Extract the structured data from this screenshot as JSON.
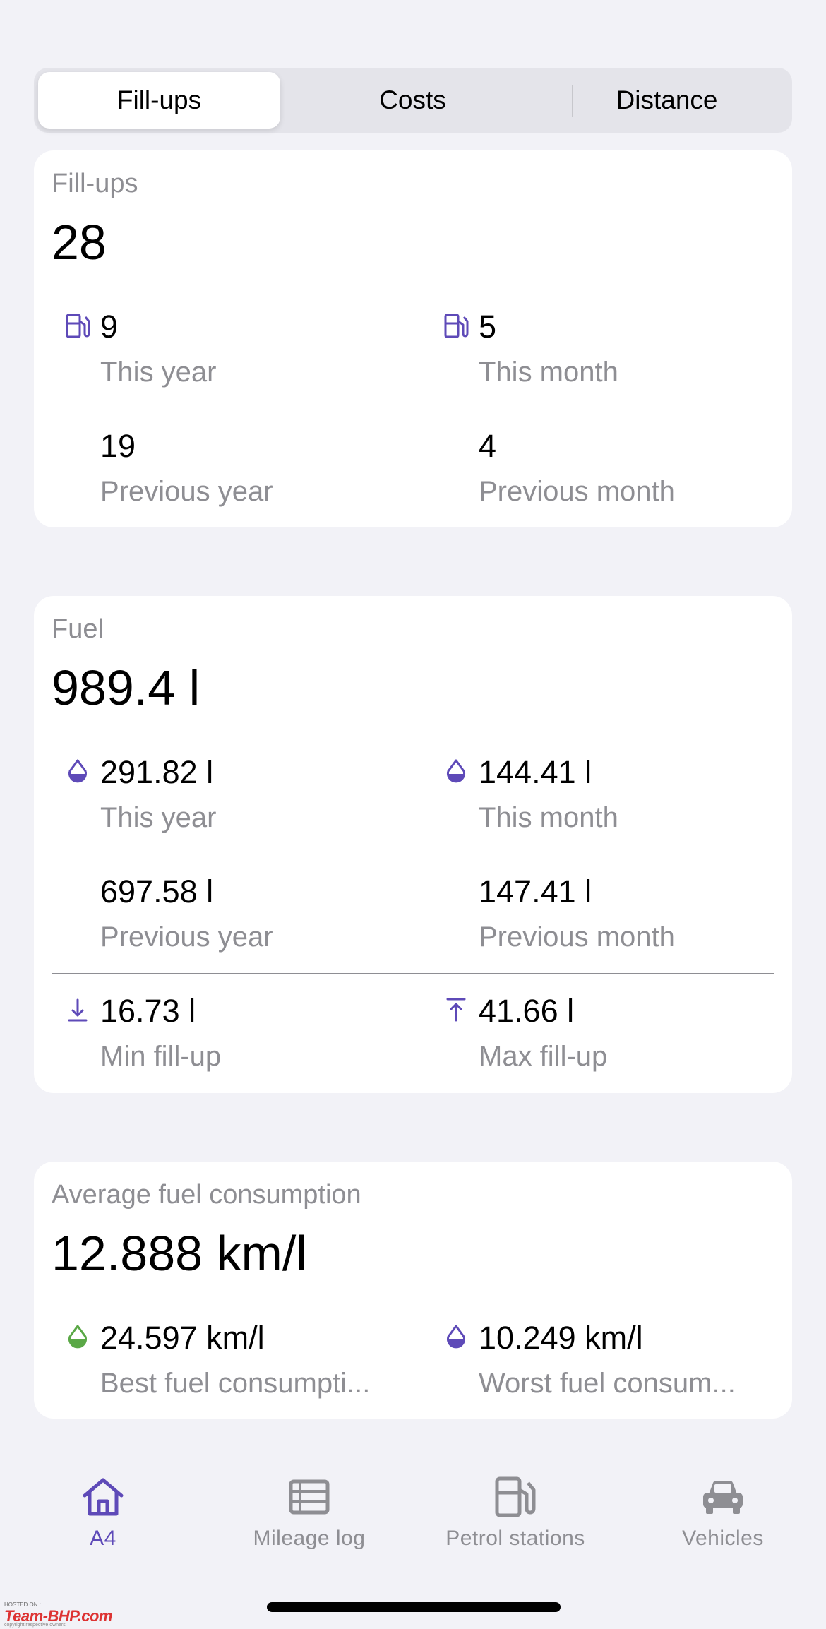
{
  "segments": [
    {
      "label": "Fill-ups",
      "active": true
    },
    {
      "label": "Costs",
      "active": false
    },
    {
      "label": "Distance",
      "active": false
    }
  ],
  "fillups": {
    "title": "Fill-ups",
    "total": "28",
    "this_year": {
      "value": "9",
      "label": "This year",
      "icon": "fuel-pump-icon"
    },
    "this_month": {
      "value": "5",
      "label": "This month",
      "icon": "fuel-pump-icon"
    },
    "previous_year": {
      "value": "19",
      "label": "Previous year"
    },
    "previous_month": {
      "value": "4",
      "label": "Previous month"
    }
  },
  "fuel": {
    "title": "Fuel",
    "total": "989.4 l",
    "this_year": {
      "value": "291.82 l",
      "label": "This year",
      "icon": "fuel-drop-icon"
    },
    "this_month": {
      "value": "144.41 l",
      "label": "This month",
      "icon": "fuel-drop-icon"
    },
    "previous_year": {
      "value": "697.58 l",
      "label": "Previous year"
    },
    "previous_month": {
      "value": "147.41 l",
      "label": "Previous month"
    },
    "min_fillup": {
      "value": "16.73 l",
      "label": "Min fill-up",
      "icon": "arrow-down-to-line-icon"
    },
    "max_fillup": {
      "value": "41.66 l",
      "label": "Max fill-up",
      "icon": "arrow-up-to-line-icon"
    }
  },
  "consumption": {
    "title": "Average fuel consumption",
    "total": "12.888 km/l",
    "best": {
      "value": "24.597 km/l",
      "label": "Best fuel consumpti...",
      "icon": "green-drop-icon"
    },
    "worst": {
      "value": "10.249 km/l",
      "label": "Worst fuel consum...",
      "icon": "purple-drop-icon"
    }
  },
  "tabbar": [
    {
      "label": "A4",
      "icon": "house-icon",
      "active": true
    },
    {
      "label": "Mileage log",
      "icon": "list-icon",
      "active": false
    },
    {
      "label": "Petrol stations",
      "icon": "fuel-pump-icon",
      "active": false
    },
    {
      "label": "Vehicles",
      "icon": "car-icon",
      "active": false
    }
  ],
  "watermark": {
    "hosted": "HOSTED ON :",
    "brand": "Team-BHP.com",
    "copyright": "copyright respective owners"
  },
  "colors": {
    "accent": "#5e4ab8",
    "green": "#5aa846",
    "secondary_text": "#8e8e93",
    "background": "#f2f2f7"
  }
}
